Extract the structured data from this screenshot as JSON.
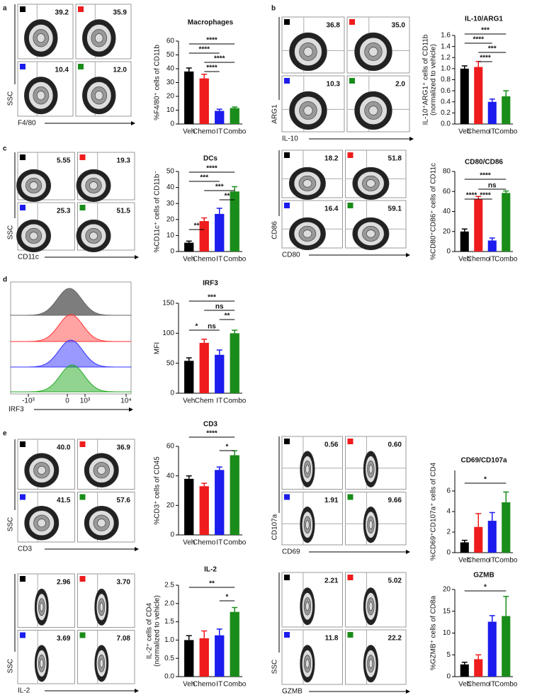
{
  "panel_labels": [
    "a",
    "b",
    "c",
    "d",
    "e"
  ],
  "chart_data": [
    {
      "type": "bar",
      "title": "Macrophages",
      "ylabel": [
        "%F4/80⁺ cells of CD11b"
      ],
      "categories": [
        "Veh",
        "Chemo",
        "IT",
        "Combo"
      ],
      "values": [
        38,
        33,
        9.5,
        11.5
      ],
      "errors": [
        2.5,
        3,
        1.2,
        0.8
      ],
      "colors": [
        "#000000",
        "#ee1c1c",
        "#1c1cee",
        "#1a8c1a"
      ],
      "ylim": [
        0,
        60
      ],
      "yticks": [
        0,
        10,
        20,
        30,
        40,
        50,
        60
      ],
      "annotations": [
        "****",
        "****",
        "****",
        "****"
      ]
    },
    {
      "type": "bar",
      "title": "IL-10/ARG1",
      "ylabel": [
        "IL-10⁺ARG1⁺ cells of CD11b",
        "(normalized to vehicle)"
      ],
      "categories": [
        "Veh",
        "Chemo",
        "IT",
        "Combo"
      ],
      "values": [
        1.0,
        1.03,
        0.4,
        0.5
      ],
      "errors": [
        0.05,
        0.1,
        0.05,
        0.1
      ],
      "colors": [
        "#000000",
        "#ee1c1c",
        "#1c1cee",
        "#1a8c1a"
      ],
      "ylim": [
        0,
        1.6
      ],
      "yticks": [
        {
          "value": 0,
          "label": "0.0"
        },
        0.2,
        0.4,
        0.6,
        0.8,
        {
          "value": 1,
          "label": "1.0"
        },
        1.2,
        1.4,
        1.6
      ],
      "annotations": [
        "***",
        "****",
        "***",
        "****"
      ]
    },
    {
      "type": "bar",
      "title": "DCs",
      "ylabel": [
        "%CD11c⁺ cells of CD11b⁻"
      ],
      "categories": [
        "Veh",
        "Chemo",
        "IT",
        "Combo"
      ],
      "values": [
        5.5,
        19,
        23.5,
        37.5
      ],
      "errors": [
        1,
        2,
        3.5,
        3
      ],
      "colors": [
        "#000000",
        "#ee1c1c",
        "#1c1cee",
        "#1a8c1a"
      ],
      "ylim": [
        0,
        50
      ],
      "yticks": [
        0,
        10,
        20,
        30,
        40,
        50
      ],
      "annotations": [
        "****",
        "***",
        "***",
        "**",
        "**"
      ]
    },
    {
      "type": "bar",
      "title": "CD80/CD86",
      "ylabel": [
        "%CD80⁺CD86⁺ cells of CD11c"
      ],
      "categories": [
        "Veh",
        "Chemo",
        "IT",
        "Combo"
      ],
      "values": [
        20,
        52,
        11,
        58.5
      ],
      "errors": [
        2.5,
        3,
        2.5,
        2
      ],
      "colors": [
        "#000000",
        "#ee1c1c",
        "#1c1cee",
        "#1a8c1a"
      ],
      "ylim": [
        0,
        80
      ],
      "yticks": [
        0,
        20,
        40,
        60,
        80
      ],
      "annotations": [
        "****",
        "ns",
        "****",
        "****"
      ]
    },
    {
      "type": "bar",
      "title": "IRF3",
      "ylabel": [
        "MFI"
      ],
      "categories": [
        "Veh",
        "Chem",
        "IT",
        "Combo"
      ],
      "values": [
        54,
        84,
        64,
        100
      ],
      "errors": [
        5,
        6,
        8,
        5
      ],
      "colors": [
        "#000000",
        "#ee1c1c",
        "#1c1cee",
        "#1a8c1a"
      ],
      "ylim": [
        0,
        150
      ],
      "yticks": [
        0,
        50,
        100,
        150
      ],
      "annotations": [
        "***",
        "ns",
        "**",
        "*",
        "ns"
      ]
    },
    {
      "type": "bar",
      "title": "CD3",
      "ylabel": [
        "%CD3⁺ cells of CD45"
      ],
      "categories": [
        "Veh",
        "Chemo",
        "IT",
        "Combo"
      ],
      "values": [
        38,
        33,
        44,
        54
      ],
      "errors": [
        2,
        2,
        2,
        3
      ],
      "colors": [
        "#000000",
        "#ee1c1c",
        "#1c1cee",
        "#1a8c1a"
      ],
      "ylim": [
        0,
        60
      ],
      "yticks": [
        0,
        20,
        40,
        60
      ],
      "annotations": [
        "****",
        "*"
      ]
    },
    {
      "type": "bar",
      "title": "CD69/CD107a",
      "ylabel": [
        "%CD69⁺CD107a⁺ cells of CD4"
      ],
      "categories": [
        "Veh",
        "Chemo",
        "IT",
        "Combo"
      ],
      "values": [
        1.0,
        2.5,
        3.1,
        4.9
      ],
      "errors": [
        0.2,
        1.3,
        0.8,
        1.0
      ],
      "colors": [
        "#000000",
        "#ee1c1c",
        "#1c1cee",
        "#1a8c1a"
      ],
      "ylim": [
        0,
        8
      ],
      "yticks": [
        0,
        2,
        4,
        6
      ],
      "annotations": [
        "*"
      ]
    },
    {
      "type": "bar",
      "title": "IL-2",
      "ylabel": [
        "IL-2⁺ cells of CD4",
        "(normalized to vehicle)"
      ],
      "categories": [
        "Veh",
        "Chemo",
        "IT",
        "Combo"
      ],
      "values": [
        1.0,
        1.05,
        1.13,
        1.77
      ],
      "errors": [
        0.12,
        0.2,
        0.17,
        0.12
      ],
      "colors": [
        "#000000",
        "#ee1c1c",
        "#1c1cee",
        "#1a8c1a"
      ],
      "ylim": [
        0,
        2.5
      ],
      "yticks": [
        {
          "value": 0,
          "label": "0.0"
        },
        0.5,
        {
          "value": 1,
          "label": "1.0"
        },
        1.5,
        {
          "value": 2,
          "label": "2.0"
        },
        2.5
      ],
      "annotations": [
        "**",
        "*"
      ]
    },
    {
      "type": "bar",
      "title": "GZMB",
      "ylabel": [
        "%GZMB⁺ cells of CD8a"
      ],
      "categories": [
        "Veh",
        "Chemo",
        "IT",
        "Combo"
      ],
      "values": [
        2.8,
        4.0,
        12.6,
        13.9
      ],
      "errors": [
        0.5,
        1.0,
        1.4,
        4.5
      ],
      "colors": [
        "#000000",
        "#ee1c1c",
        "#1c1cee",
        "#1a8c1a"
      ],
      "ylim": [
        0,
        20
      ],
      "yticks": [
        0,
        5,
        10,
        15,
        20
      ],
      "annotations": [
        "*"
      ]
    }
  ],
  "flow_plots": [
    {
      "ylabel": "SSC",
      "xlabel": "F4/80",
      "values": [
        "39.2",
        "35.9",
        "10.4",
        "12.0"
      ]
    },
    {
      "ylabel": "ARG1",
      "xlabel": "IL-10",
      "values": [
        "36.8",
        "35.0",
        "10.3",
        "2.0"
      ]
    },
    {
      "ylabel": "SSC",
      "xlabel": "CD11c",
      "values": [
        "5.55",
        "19.3",
        "25.3",
        "51.5"
      ]
    },
    {
      "ylabel": "CD86",
      "xlabel": "CD80",
      "values": [
        "18.2",
        "51.8",
        "16.4",
        "59.1"
      ]
    },
    {
      "ylabel": "SSC",
      "xlabel": "CD3",
      "values": [
        "40.0",
        "36.9",
        "41.5",
        "57.6"
      ]
    },
    {
      "ylabel": "CD107a",
      "xlabel": "CD69",
      "values": [
        "0.56",
        "0.60",
        "1.91",
        "9.66"
      ]
    },
    {
      "ylabel": "SSC",
      "xlabel": "IL-2",
      "values": [
        "2.96",
        "3.70",
        "3.69",
        "7.08"
      ]
    },
    {
      "ylabel": "SSC",
      "xlabel": "GZMB",
      "values": [
        "2.21",
        "5.02",
        "11.8",
        "22.2"
      ]
    }
  ],
  "histogram": {
    "xlabel": "IRF3",
    "xticks": [
      "-10³",
      "0",
      "10³",
      "10⁴"
    ]
  }
}
